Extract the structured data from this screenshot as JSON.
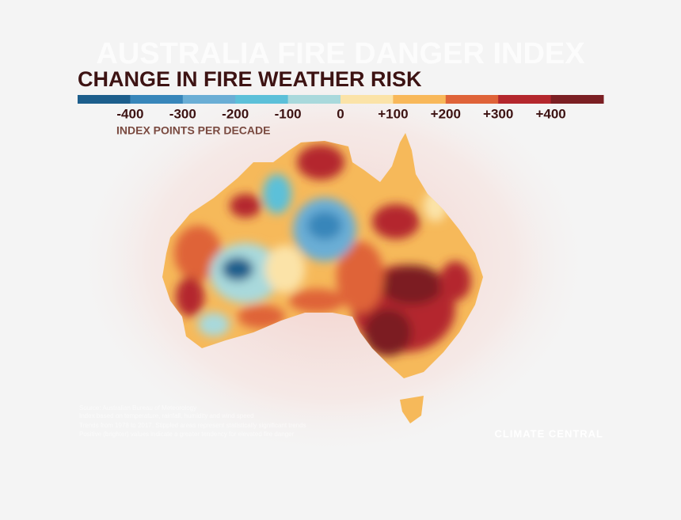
{
  "header": {
    "faded_title": "AUSTRALIA FIRE DANGER INDEX",
    "title": "CHANGE IN FIRE WEATHER RISK"
  },
  "legend": {
    "colors": [
      "#1d5e8c",
      "#3886ba",
      "#6aaed5",
      "#5cc0d9",
      "#a9d9dc",
      "#fbe3a8",
      "#f8b85a",
      "#df6339",
      "#b4272d",
      "#7b1f23"
    ],
    "labels": [
      "-400",
      "-300",
      "-200",
      "-100",
      "0",
      "+100",
      "+200",
      "+300",
      "+400"
    ],
    "unit": "INDEX POINTS PER DECADE"
  },
  "footer": {
    "source": [
      "Source: Australian Bureau of Meteorology",
      "Index based on temperature, rainfall, humidity and wind speed",
      "Trends from 1978 to 2017. Stippled areas represent statistically significant trends",
      "Positive (brighter) values indicate a greater tendency for elevated fire danger"
    ],
    "logo": "CLIMATE CENTRAL"
  }
}
